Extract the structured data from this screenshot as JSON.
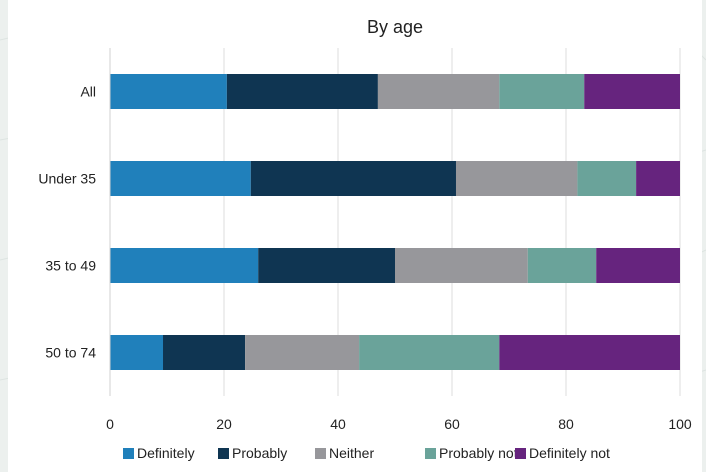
{
  "chart_data": {
    "type": "bar",
    "orientation": "horizontal",
    "stacked": true,
    "title": "By age",
    "xlabel": "",
    "ylabel": "",
    "xlim": [
      0,
      100
    ],
    "x_ticks": [
      0,
      20,
      40,
      60,
      80,
      100
    ],
    "grid": "vertical",
    "legend_position": "bottom",
    "categories": [
      "All",
      "Under 35",
      "35 to 49",
      "50 to 74"
    ],
    "series": [
      {
        "name": "Definitely",
        "color": "#2080bb",
        "values": [
          20.5,
          24.7,
          26.0,
          9.3
        ]
      },
      {
        "name": "Probably",
        "color": "#0f3552",
        "values": [
          26.5,
          36.0,
          24.0,
          14.4
        ]
      },
      {
        "name": "Neither",
        "color": "#97979b",
        "values": [
          21.3,
          21.3,
          23.3,
          20.0
        ]
      },
      {
        "name": "Probably not",
        "color": "#6aa39a",
        "values": [
          14.9,
          10.3,
          12.0,
          24.6
        ]
      },
      {
        "name": "Definitely not",
        "color": "#66247e",
        "values": [
          16.8,
          7.7,
          14.7,
          31.7
        ]
      }
    ]
  }
}
